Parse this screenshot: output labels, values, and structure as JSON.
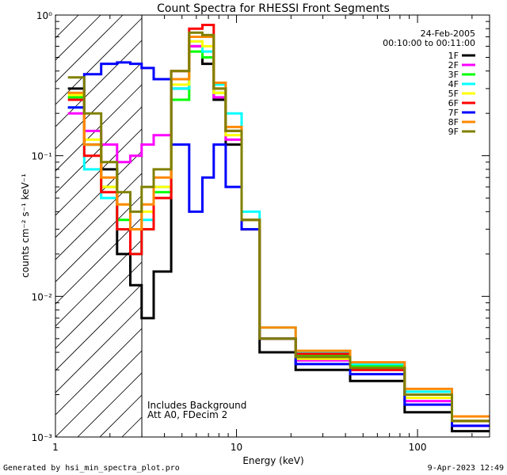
{
  "chart_data": {
    "type": "line",
    "title": "Count Spectra for RHESSI Front Segments",
    "xlabel": "Energy (keV)",
    "ylabel": "counts cm⁻² s⁻¹ keV⁻¹",
    "xscale": "log",
    "yscale": "log",
    "xlim": [
      1.0,
      250.0
    ],
    "ylim": [
      0.001,
      1.0
    ],
    "x_tick_labels": [
      "1",
      "10",
      "100"
    ],
    "y_tick_labels": [
      "10⁻³",
      "10⁻²",
      "10⁻¹",
      "10⁰"
    ],
    "date": "24-Feb-2005",
    "time_range": "00:10:00 to 00:11:00",
    "shaded_region_max_kev": 3.0,
    "annotations": [
      "Includes Background",
      "Att A0, FDecim 2"
    ],
    "legend_position": "top-right",
    "series": [
      {
        "name": "1F",
        "color": "#000000",
        "values": [
          0.3,
          0.12,
          0.08,
          0.02,
          0.012,
          0.007,
          0.015,
          0.3,
          0.6,
          0.45,
          0.25,
          0.12,
          0.03,
          0.004,
          0.003,
          0.0025,
          0.0015,
          0.0011
        ]
      },
      {
        "name": "2F",
        "color": "#ff00ff",
        "values": [
          0.2,
          0.15,
          0.12,
          0.09,
          0.1,
          0.12,
          0.14,
          0.35,
          0.6,
          0.5,
          0.26,
          0.13,
          0.03,
          0.005,
          0.0035,
          0.003,
          0.0018,
          0.0012
        ]
      },
      {
        "name": "3F",
        "color": "#00ff00",
        "values": [
          0.26,
          0.12,
          0.06,
          0.035,
          0.02,
          0.03,
          0.055,
          0.25,
          0.55,
          0.5,
          0.28,
          0.15,
          0.035,
          0.005,
          0.0038,
          0.0032,
          0.002,
          0.0013
        ]
      },
      {
        "name": "4F",
        "color": "#00ffff",
        "values": [
          0.22,
          0.08,
          0.05,
          0.03,
          0.02,
          0.035,
          0.06,
          0.3,
          0.65,
          0.55,
          0.32,
          0.2,
          0.04,
          0.006,
          0.004,
          0.0033,
          0.0021,
          0.0014
        ]
      },
      {
        "name": "5F",
        "color": "#ffff00",
        "values": [
          0.27,
          0.13,
          0.06,
          0.045,
          0.03,
          0.04,
          0.06,
          0.32,
          0.65,
          0.6,
          0.28,
          0.14,
          0.03,
          0.005,
          0.0036,
          0.0031,
          0.0019,
          0.0013
        ]
      },
      {
        "name": "6F",
        "color": "#ff0000",
        "values": [
          0.25,
          0.1,
          0.055,
          0.03,
          0.02,
          0.03,
          0.05,
          0.4,
          0.8,
          0.85,
          0.3,
          0.15,
          0.035,
          0.005,
          0.0039,
          0.003,
          0.002,
          0.0013
        ]
      },
      {
        "name": "7F",
        "color": "#0000ff",
        "values": [
          0.22,
          0.38,
          0.45,
          0.46,
          0.45,
          0.42,
          0.35,
          0.12,
          0.04,
          0.07,
          0.12,
          0.06,
          0.03,
          0.005,
          0.0033,
          0.0028,
          0.0017,
          0.0012
        ]
      },
      {
        "name": "8F",
        "color": "#ff8800",
        "values": [
          0.28,
          0.12,
          0.07,
          0.045,
          0.03,
          0.045,
          0.07,
          0.35,
          0.7,
          0.7,
          0.33,
          0.16,
          0.035,
          0.006,
          0.0041,
          0.0034,
          0.0022,
          0.0014
        ]
      },
      {
        "name": "9F",
        "color": "#808000",
        "values": [
          0.36,
          0.2,
          0.09,
          0.055,
          0.04,
          0.06,
          0.08,
          0.4,
          0.75,
          0.72,
          0.3,
          0.15,
          0.035,
          0.005,
          0.0037,
          0.0031,
          0.002,
          0.0013
        ]
      }
    ],
    "x": [
      1.3,
      1.6,
      2.0,
      2.4,
      2.8,
      3.2,
      3.8,
      5.0,
      6.0,
      7.0,
      8.0,
      9.5,
      12.0,
      15.0,
      30.0,
      60.0,
      120.0,
      200.0
    ]
  },
  "footer": {
    "left": "Generated by hsi_min_spectra_plot.pro",
    "right": "9-Apr-2023 12:49"
  }
}
